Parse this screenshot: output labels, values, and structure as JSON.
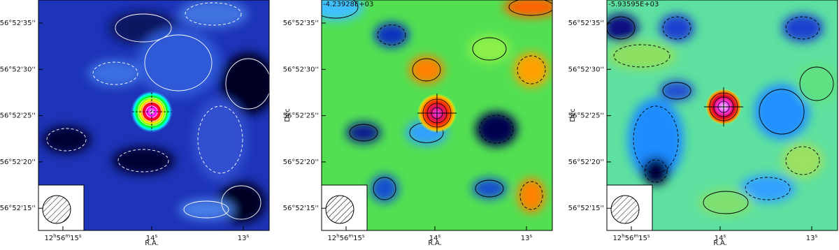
{
  "panels": [
    {
      "dec_ticks": [
        "56°52'35''",
        "56°52'30''",
        "56°52'25''",
        "56°52'20''",
        "56°52'15''"
      ],
      "ra_ticks": [
        [
          "12",
          "h",
          "56",
          "m",
          "15",
          "s"
        ],
        [
          "14",
          "s"
        ],
        [
          "13",
          "s"
        ]
      ],
      "ra_label": "R.A."
    },
    {
      "annotation": "-4.23928E+03",
      "dec_label": "Dec",
      "dec_ticks": [
        "56°52'35''",
        "56°52'30''",
        "56°52'25''",
        "56°52'20''",
        "56°52'15''"
      ],
      "ra_ticks": [
        [
          "12",
          "h",
          "56",
          "m",
          "15",
          "s"
        ],
        [
          "14",
          "s"
        ],
        [
          "13",
          "s"
        ]
      ],
      "ra_label": "R.A."
    },
    {
      "annotation": "-5.93595E+03",
      "dec_label": "Dec",
      "dec_ticks": [
        "56°52'35''",
        "56°52'30''",
        "56°52'25''",
        "56°52'20''",
        "56°52'15''"
      ],
      "ra_ticks": [
        [
          "12",
          "h",
          "56",
          "m",
          "15",
          "s"
        ],
        [
          "14",
          "s"
        ],
        [
          "13",
          "s"
        ]
      ],
      "ra_label": "R.A."
    }
  ]
}
